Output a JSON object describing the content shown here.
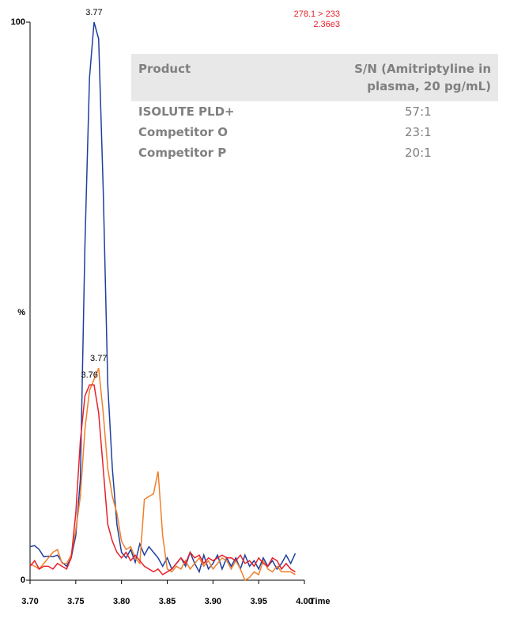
{
  "chart_data": {
    "type": "line",
    "y_label": "%",
    "x_label": "Time",
    "annotations": [
      "278.1 > 233",
      "2.36e3"
    ],
    "xlim": [
      3.7,
      4.0
    ],
    "xticks": [
      {
        "value": 3.7,
        "label": "3.70"
      },
      {
        "value": 3.75,
        "label": "3.75"
      },
      {
        "value": 3.8,
        "label": "3.80"
      },
      {
        "value": 3.85,
        "label": "3.85"
      },
      {
        "value": 3.9,
        "label": "3.90"
      },
      {
        "value": 3.95,
        "label": "3.95"
      },
      {
        "value": 4.0,
        "label": "4.00"
      }
    ],
    "ylim": [
      0,
      100
    ],
    "yticks": [
      0,
      100
    ],
    "x": [
      3.7,
      3.705,
      3.71,
      3.715,
      3.72,
      3.725,
      3.73,
      3.735,
      3.74,
      3.745,
      3.75,
      3.755,
      3.76,
      3.765,
      3.77,
      3.775,
      3.78,
      3.785,
      3.79,
      3.795,
      3.8,
      3.805,
      3.81,
      3.815,
      3.82,
      3.825,
      3.83,
      3.835,
      3.84,
      3.845,
      3.85,
      3.855,
      3.86,
      3.865,
      3.87,
      3.875,
      3.88,
      3.885,
      3.89,
      3.895,
      3.9,
      3.905,
      3.91,
      3.915,
      3.92,
      3.925,
      3.93,
      3.935,
      3.94,
      3.945,
      3.95,
      3.955,
      3.96,
      3.965,
      3.97,
      3.975,
      3.98,
      3.985,
      3.99
    ],
    "series": [
      {
        "color": "#1f3fa0",
        "peak_label": "3.77",
        "values": [
          6,
          6.2,
          5.5,
          4.2,
          4.3,
          4.2,
          4.5,
          3.2,
          2.5,
          4,
          8,
          18,
          60,
          90,
          100,
          97,
          70,
          35,
          20,
          10,
          5,
          4,
          5.5,
          3.2,
          6.5,
          4.5,
          6,
          5,
          4,
          2.5,
          4,
          2,
          3,
          4,
          2.5,
          5,
          3,
          1.5,
          4.5,
          2,
          3,
          4.5,
          2,
          4,
          2.5,
          4,
          2,
          4.5,
          2.5,
          3.5,
          2,
          4,
          2.5,
          3.5,
          2,
          3,
          4.5,
          3,
          4.8
        ]
      },
      {
        "color": "#f07f2a",
        "peak_label": "3.77",
        "values": [
          3,
          2.5,
          2,
          3,
          4,
          5,
          5.5,
          3,
          3,
          4.5,
          9,
          15,
          27,
          34,
          36,
          38,
          30,
          20,
          15,
          12,
          7,
          5.5,
          6,
          4,
          3,
          14.5,
          15,
          15.5,
          19.5,
          8,
          2,
          1.5,
          2.5,
          2,
          3.5,
          2,
          3,
          4,
          2.5,
          3.5,
          2,
          3,
          4,
          3.5,
          2,
          3.5,
          2,
          0,
          0.5,
          1.5,
          1,
          3.5,
          2,
          1.5,
          2.5,
          1.5,
          1.5,
          1.5,
          1
        ]
      },
      {
        "color": "#e8202a",
        "peak_label": "3.76",
        "values": [
          2.5,
          3.5,
          2,
          2.5,
          2.5,
          2,
          3,
          2.5,
          2,
          4,
          12,
          25,
          33,
          35,
          35,
          30,
          20,
          10,
          7,
          5,
          4,
          5,
          3.5,
          4.5,
          3.5,
          2.5,
          2,
          1.5,
          2,
          1,
          1.5,
          2,
          3,
          4,
          3,
          5,
          4,
          4.5,
          3,
          4,
          3.5,
          4,
          4.5,
          4,
          4,
          3.5,
          4.5,
          3,
          3.5,
          2.5,
          4,
          3,
          2.5,
          4,
          3.5,
          2,
          3,
          2,
          1.5
        ]
      }
    ]
  },
  "table": {
    "header": [
      "Product",
      "S/N (Amitriptyline in plasma, 20 pg/mL)"
    ],
    "rows": [
      [
        "ISOLUTE PLD+",
        "57:1"
      ],
      [
        "Competitor O",
        "23:1"
      ],
      [
        "Competitor P",
        "20:1"
      ]
    ]
  }
}
